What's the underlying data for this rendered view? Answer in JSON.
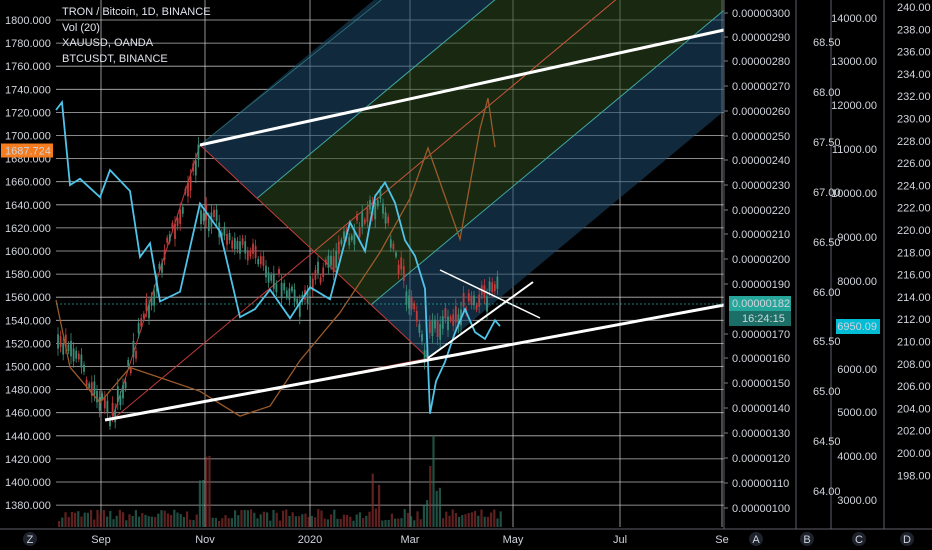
{
  "legend": {
    "main": "TRON / Bitcoin, 1D, BINANCE",
    "vol": "Vol (20)",
    "s2": "XAUUSD, OANDA",
    "s3": "BTCUSDT, BINANCE"
  },
  "chart_data": {
    "type": "line",
    "title": "TRON / Bitcoin, 1D, BINANCE",
    "x_labels": [
      "Sep",
      "Nov",
      "2020",
      "Mar",
      "May",
      "Jul",
      "Se"
    ],
    "scales": {
      "gold": {
        "ticks": [
          "1800.000",
          "1780.000",
          "1760.000",
          "1740.000",
          "1720.000",
          "1700.000",
          "1680.000",
          "1660.000",
          "1640.000",
          "1620.000",
          "1600.000",
          "1580.000",
          "1560.000",
          "1540.000",
          "1520.000",
          "1500.000",
          "1480.000",
          "1460.000",
          "1440.000",
          "1420.000",
          "1400.000",
          "1380.000"
        ],
        "current": "1687.724",
        "current_color": "#f57c1f"
      },
      "trxbtc": {
        "ticks": [
          "0.00000300",
          "0.00000290",
          "0.00000280",
          "0.00000270",
          "0.00000260",
          "0.00000250",
          "0.00000240",
          "0.00000230",
          "0.00000220",
          "0.00000210",
          "0.00000200",
          "0.00000190",
          "0.00000170",
          "0.00000160",
          "0.00000150",
          "0.00000140",
          "0.00000130",
          "0.00000120",
          "0.00000110",
          "0.00000100"
        ],
        "current": "0.00000182",
        "countdown": "16:24:15",
        "current_color": "#26a69a"
      },
      "third": {
        "ticks": [
          "68.50",
          "68.00",
          "67.50",
          "67.00",
          "66.50",
          "66.00",
          "65.50",
          "65.00",
          "64.50",
          "64.00"
        ]
      },
      "btcusdt": {
        "ticks": [
          "14000.00",
          "13000.00",
          "12000.00",
          "11000.00",
          "10000.00",
          "9000.00",
          "8000.00",
          "7000.00",
          "6000.00",
          "5000.00",
          "4000.00",
          "3000.00"
        ],
        "current": "6950.09",
        "current_color": "#00bcd4"
      },
      "fifth": {
        "ticks": [
          "240.00",
          "238.00",
          "236.00",
          "234.00",
          "232.00",
          "230.00",
          "228.00",
          "226.00",
          "224.00",
          "222.00",
          "220.00",
          "218.00",
          "216.00",
          "214.00",
          "212.00",
          "210.00",
          "208.00",
          "206.00",
          "204.00",
          "202.00",
          "200.00",
          "198.00"
        ]
      }
    },
    "footer_letters": [
      "Z",
      "A",
      "B",
      "C",
      "D"
    ],
    "series": [
      {
        "name": "TRON / Bitcoin",
        "color": "#c23b3b"
      },
      {
        "name": "XAUUSD",
        "color": "#9a5a2a"
      },
      {
        "name": "BTCUSDT",
        "color": "#4fc3e8"
      }
    ]
  }
}
